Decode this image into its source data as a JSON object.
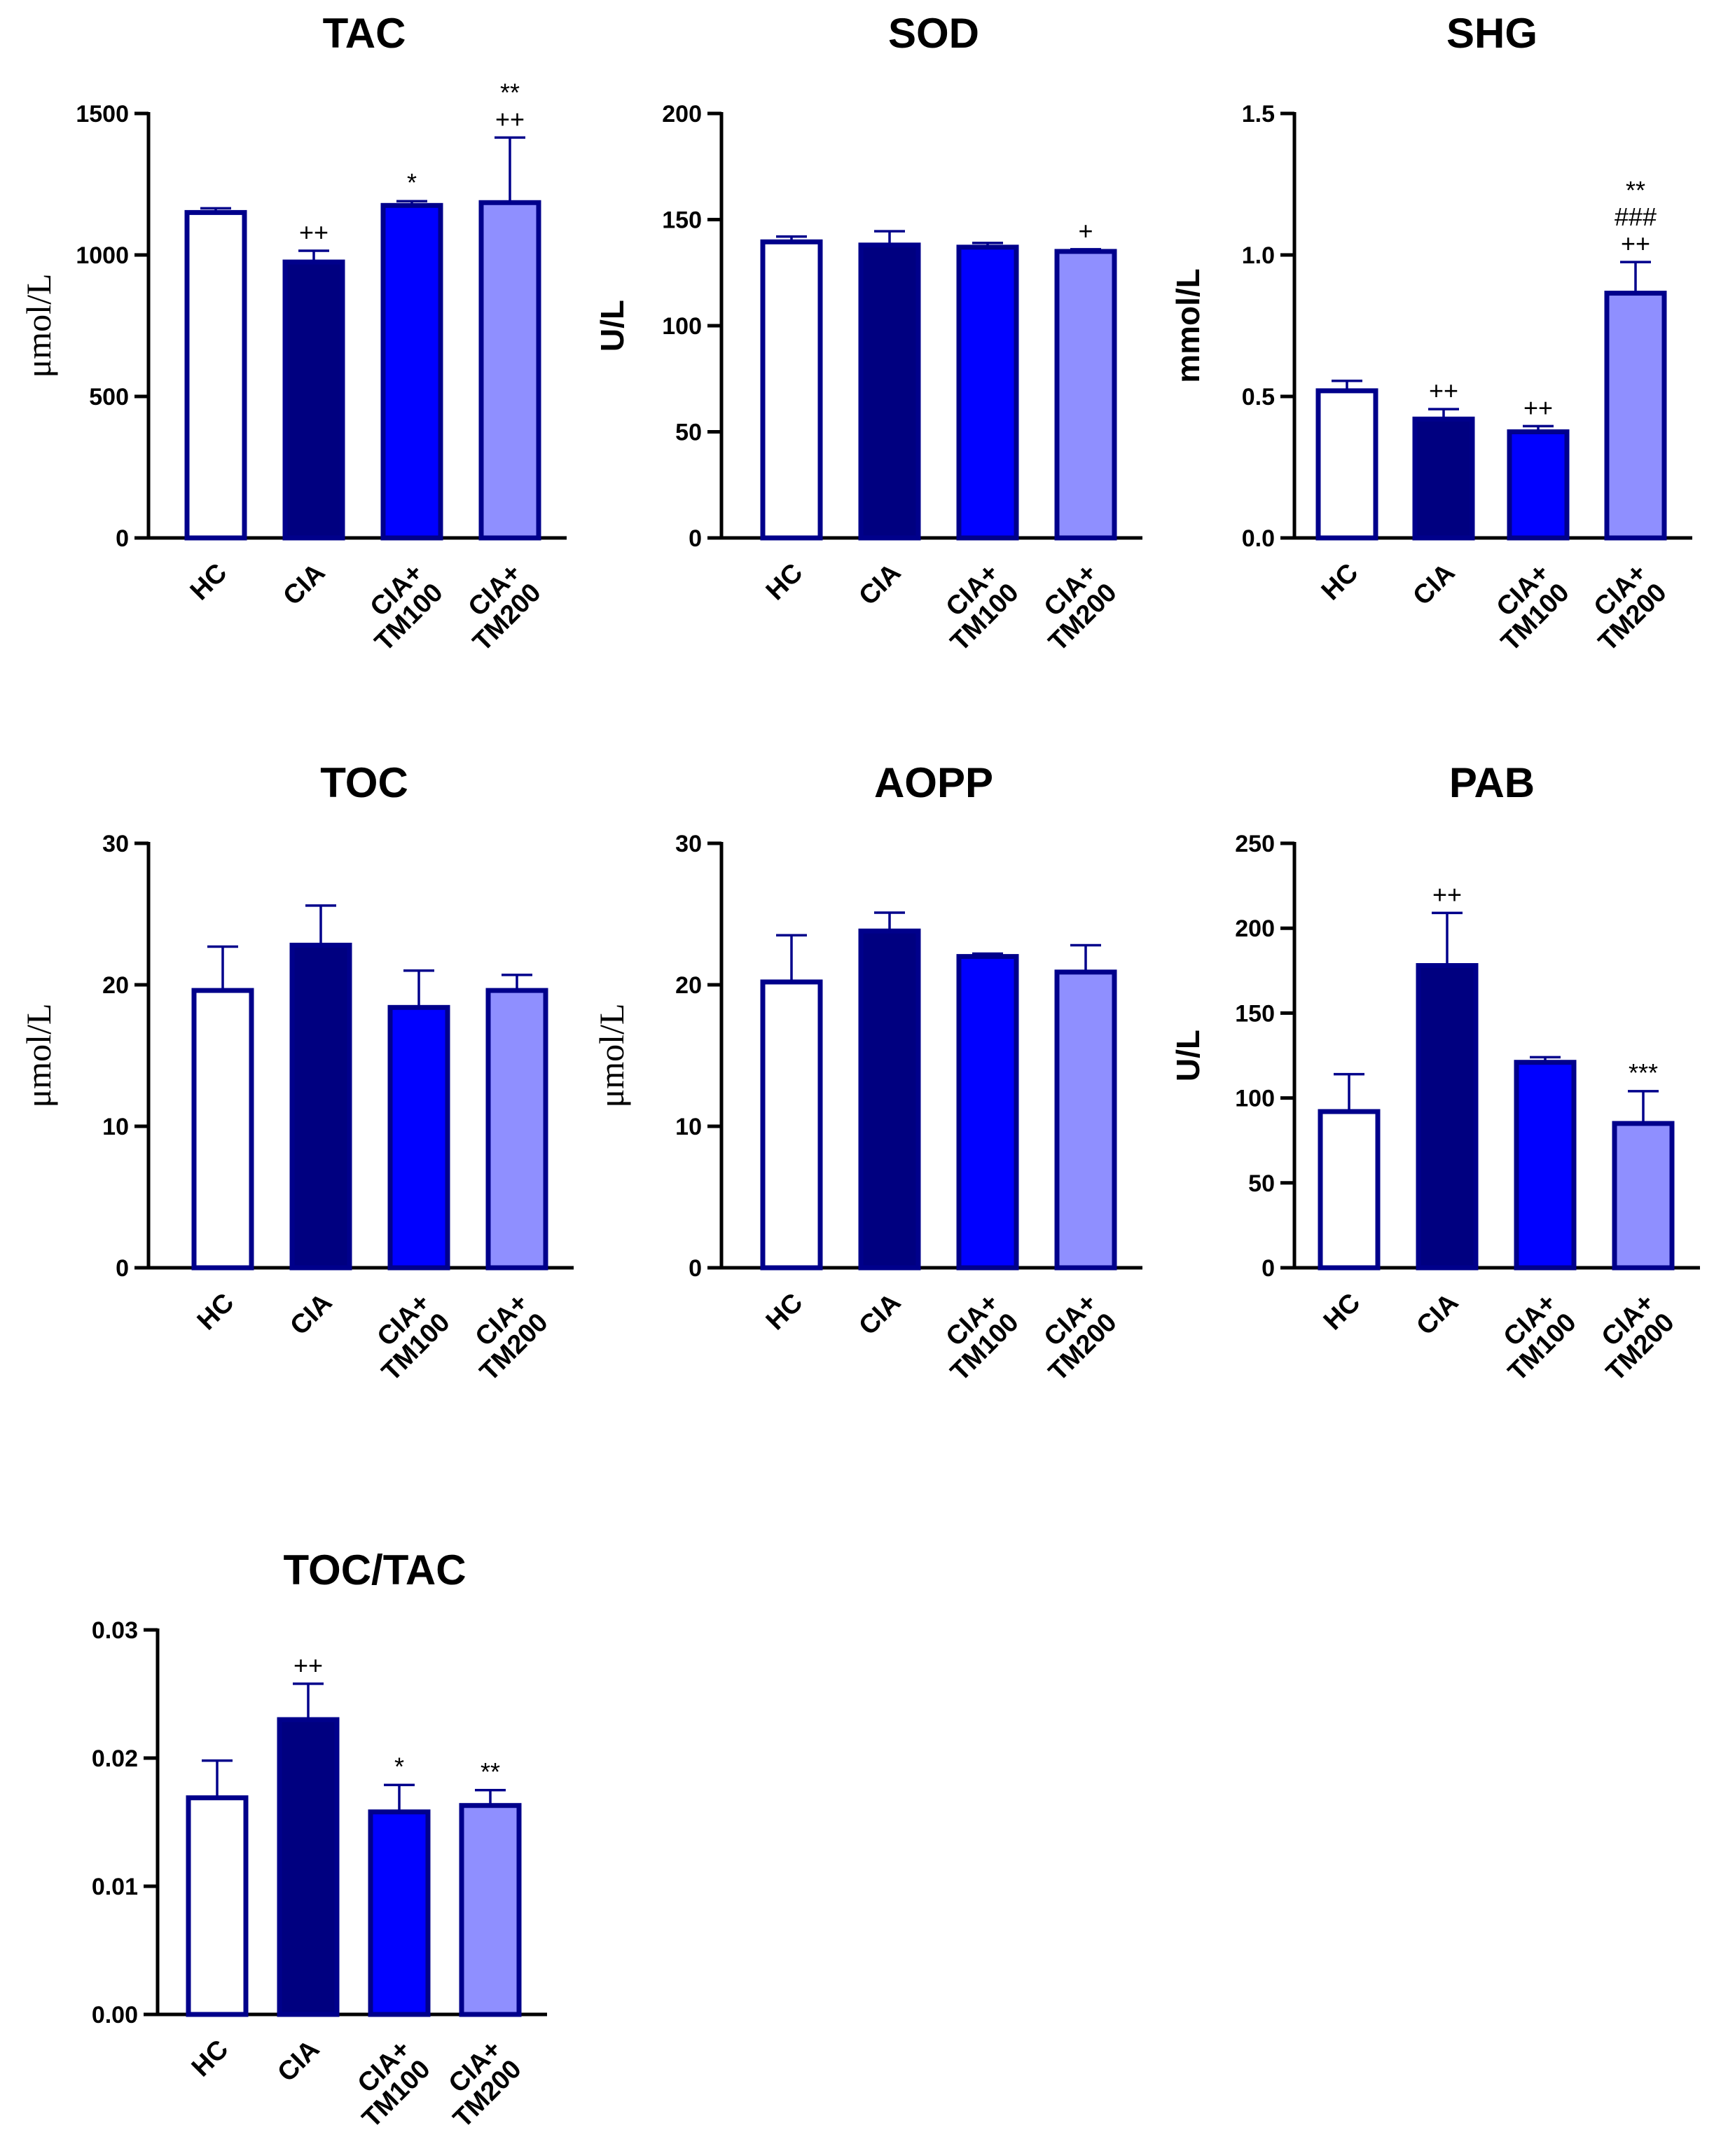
{
  "colors": {
    "outline": "#00008b",
    "HC": "#ffffff",
    "CIA": "#000080",
    "CIA+TM100": "#0000ff",
    "CIA+TM200": "#8f8fff"
  },
  "chart_data": [
    {
      "type": "bar",
      "title": "TAC",
      "ylabel": "μmol/L",
      "ylabel_font": "serif",
      "ylim": [
        0,
        1500
      ],
      "yticks": [
        "0",
        "500",
        "1000",
        "1500"
      ],
      "yticks_values": [
        0,
        500,
        1000,
        1500
      ],
      "categories": [
        "HC",
        "CIA",
        "CIA+TM100",
        "CIA+TM200"
      ],
      "category_lines": [
        [
          "HC"
        ],
        [
          "CIA"
        ],
        [
          "CIA+",
          "TM100"
        ],
        [
          "CIA+",
          "TM200"
        ]
      ],
      "values": [
        1150,
        975,
        1175,
        1185
      ],
      "errors": [
        15,
        40,
        15,
        230
      ],
      "annotations": [
        [],
        [
          "++"
        ],
        [
          "*"
        ],
        [
          "**",
          "++"
        ]
      ]
    },
    {
      "type": "bar",
      "title": "SOD",
      "ylabel": "U/L",
      "ylabel_font": "sans",
      "ylim": [
        0,
        200
      ],
      "yticks": [
        "0",
        "50",
        "100",
        "150",
        "200"
      ],
      "yticks_values": [
        0,
        50,
        100,
        150,
        200
      ],
      "categories": [
        "HC",
        "CIA",
        "CIA+TM100",
        "CIA+TM200"
      ],
      "category_lines": [
        [
          "HC"
        ],
        [
          "CIA"
        ],
        [
          "CIA+",
          "TM100"
        ],
        [
          "CIA+",
          "TM200"
        ]
      ],
      "values": [
        139.5,
        138,
        137,
        135
      ],
      "errors": [
        2.5,
        6.5,
        2,
        1
      ],
      "annotations": [
        [],
        [],
        [],
        [
          "+"
        ]
      ]
    },
    {
      "type": "bar",
      "title": "SHG",
      "ylabel": "mmol/L",
      "ylabel_font": "sans",
      "ylim": [
        0,
        1.5
      ],
      "yticks": [
        "0.0",
        "0.5",
        "1.0",
        "1.5"
      ],
      "yticks_values": [
        0,
        0.5,
        1.0,
        1.5
      ],
      "categories": [
        "HC",
        "CIA",
        "CIA+TM100",
        "CIA+TM200"
      ],
      "category_lines": [
        [
          "HC"
        ],
        [
          "CIA"
        ],
        [
          "CIA+",
          "TM100"
        ],
        [
          "CIA+",
          "TM200"
        ]
      ],
      "values": [
        0.52,
        0.42,
        0.375,
        0.865
      ],
      "errors": [
        0.035,
        0.035,
        0.02,
        0.11
      ],
      "annotations": [
        [],
        [
          "++"
        ],
        [
          "++"
        ],
        [
          "**",
          "###",
          "++"
        ]
      ]
    },
    {
      "type": "bar",
      "title": "TOC",
      "ylabel": "μmol/L",
      "ylabel_font": "serif",
      "ylim": [
        0,
        30
      ],
      "yticks": [
        "0",
        "10",
        "20",
        "30"
      ],
      "yticks_values": [
        0,
        10,
        20,
        30
      ],
      "categories": [
        "HC",
        "CIA",
        "CIA+TM100",
        "CIA+TM200"
      ],
      "category_lines": [
        [
          "HC"
        ],
        [
          "CIA"
        ],
        [
          "CIA+",
          "TM100"
        ],
        [
          "CIA+",
          "TM200"
        ]
      ],
      "values": [
        19.6,
        22.8,
        18.4,
        19.6
      ],
      "errors": [
        3.1,
        2.8,
        2.6,
        1.1
      ],
      "annotations": [
        [],
        [],
        [],
        []
      ]
    },
    {
      "type": "bar",
      "title": "AOPP",
      "ylabel": "μmol/L",
      "ylabel_font": "serif",
      "ylim": [
        0,
        30
      ],
      "yticks": [
        "0",
        "10",
        "20",
        "30"
      ],
      "yticks_values": [
        0,
        10,
        20,
        30
      ],
      "categories": [
        "HC",
        "CIA",
        "CIA+TM100",
        "CIA+TM200"
      ],
      "category_lines": [
        [
          "HC"
        ],
        [
          "CIA"
        ],
        [
          "CIA+",
          "TM100"
        ],
        [
          "CIA+",
          "TM200"
        ]
      ],
      "values": [
        20.2,
        23.8,
        22,
        20.9
      ],
      "errors": [
        3.3,
        1.3,
        0.2,
        1.9
      ],
      "annotations": [
        [],
        [],
        [],
        []
      ]
    },
    {
      "type": "bar",
      "title": "PAB",
      "ylabel": "U/L",
      "ylabel_font": "sans",
      "ylim": [
        0,
        250
      ],
      "yticks": [
        "0",
        "50",
        "100",
        "150",
        "200",
        "250"
      ],
      "yticks_values": [
        0,
        50,
        100,
        150,
        200,
        250
      ],
      "categories": [
        "HC",
        "CIA",
        "CIA+TM100",
        "CIA+TM200"
      ],
      "category_lines": [
        [
          "HC"
        ],
        [
          "CIA"
        ],
        [
          "CIA+",
          "TM100"
        ],
        [
          "CIA+",
          "TM200"
        ]
      ],
      "values": [
        92,
        178,
        121,
        85
      ],
      "errors": [
        22,
        31,
        3,
        19
      ],
      "annotations": [
        [],
        [
          "++"
        ],
        [],
        [
          "***"
        ]
      ]
    },
    {
      "type": "bar",
      "title": "TOC/TAC",
      "ylabel": "",
      "ylabel_font": "sans",
      "ylim": [
        0,
        0.03
      ],
      "yticks": [
        "0.00",
        "0.01",
        "0.02",
        "0.03"
      ],
      "yticks_values": [
        0,
        0.01,
        0.02,
        0.03
      ],
      "categories": [
        "HC",
        "CIA",
        "CIA+TM100",
        "CIA+TM200"
      ],
      "category_lines": [
        [
          "HC"
        ],
        [
          "CIA"
        ],
        [
          "CIA+",
          "TM100"
        ],
        [
          "CIA+",
          "TM200"
        ]
      ],
      "values": [
        0.0169,
        0.023,
        0.0158,
        0.0163
      ],
      "errors": [
        0.0029,
        0.0028,
        0.0021,
        0.0012
      ],
      "annotations": [
        [],
        [
          "++"
        ],
        [
          "*"
        ],
        [
          "**"
        ]
      ]
    }
  ]
}
